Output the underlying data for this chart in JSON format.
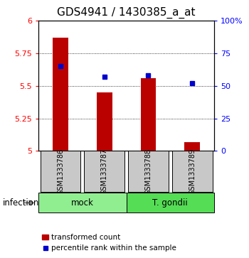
{
  "title": "GDS4941 / 1430385_a_at",
  "samples": [
    "GSM1333786",
    "GSM1333787",
    "GSM1333788",
    "GSM1333789"
  ],
  "red_values": [
    5.87,
    5.45,
    5.56,
    5.07
  ],
  "blue_values": [
    65,
    57,
    58,
    52
  ],
  "ylim_left": [
    5.0,
    6.0
  ],
  "ylim_right": [
    0,
    100
  ],
  "yticks_left": [
    5.0,
    5.25,
    5.5,
    5.75,
    6.0
  ],
  "yticks_right": [
    0,
    25,
    50,
    75,
    100
  ],
  "groups": [
    {
      "label": "mock",
      "indices": [
        0,
        1
      ],
      "color": "#90EE90"
    },
    {
      "label": "T. gondii",
      "indices": [
        2,
        3
      ],
      "color": "#55DD55"
    }
  ],
  "group_label": "infection",
  "bar_color": "#BB0000",
  "dot_color": "#0000CC",
  "bar_width": 0.35,
  "sample_box_color": "#C8C8C8",
  "title_fontsize": 11,
  "tick_fontsize": 8,
  "label_fontsize": 8.5
}
